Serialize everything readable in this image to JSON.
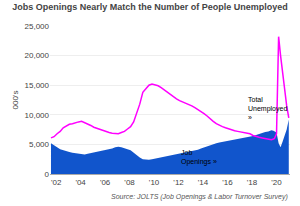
{
  "chart_data": {
    "type": "line",
    "title": "Jobs Openings Nearly Match the Number of People Unemployed",
    "ylabel": "000's",
    "source": "Source: JOLTS (Job Openings & Labor Turnover Survey)",
    "x": [
      2001.58,
      2001.83,
      2002.08,
      2002.33,
      2002.58,
      2002.83,
      2003.08,
      2003.33,
      2003.58,
      2003.83,
      2004.08,
      2004.33,
      2004.58,
      2004.83,
      2005.08,
      2005.33,
      2005.58,
      2005.83,
      2006.08,
      2006.33,
      2006.58,
      2006.83,
      2007.08,
      2007.33,
      2007.58,
      2007.83,
      2008.08,
      2008.33,
      2008.58,
      2008.83,
      2009.08,
      2009.33,
      2009.58,
      2009.83,
      2010.08,
      2010.33,
      2010.58,
      2010.83,
      2011.08,
      2011.33,
      2011.58,
      2011.83,
      2012.08,
      2012.33,
      2012.58,
      2012.83,
      2013.08,
      2013.33,
      2013.58,
      2013.83,
      2014.08,
      2014.33,
      2014.58,
      2014.83,
      2015.08,
      2015.33,
      2015.58,
      2015.83,
      2016.08,
      2016.33,
      2016.58,
      2016.83,
      2017.08,
      2017.33,
      2017.58,
      2017.83,
      2018.08,
      2018.33,
      2018.58,
      2018.83,
      2019.08,
      2019.33,
      2019.58,
      2019.75,
      2019.83,
      2020.0,
      2020.17,
      2020.33,
      2020.5,
      2020.67,
      2020.83,
      2021.0
    ],
    "series": [
      {
        "type": "area",
        "color": "#1155cc",
        "values": [
          5200,
          4800,
          4500,
          4200,
          4000,
          3800,
          3700,
          3600,
          3500,
          3400,
          3300,
          3300,
          3400,
          3500,
          3600,
          3700,
          3800,
          3900,
          4000,
          4100,
          4300,
          4500,
          4600,
          4500,
          4400,
          4200,
          4000,
          3600,
          3100,
          2800,
          2500,
          2400,
          2400,
          2500,
          2600,
          2700,
          2800,
          2900,
          3000,
          3100,
          3200,
          3300,
          3500,
          3600,
          3700,
          3800,
          3900,
          4000,
          4100,
          4300,
          4500,
          4700,
          4900,
          5100,
          5200,
          5300,
          5400,
          5400,
          5500,
          5600,
          5700,
          5800,
          5900,
          6000,
          6100,
          6200,
          6400,
          6600,
          6800,
          7000,
          7100,
          7200,
          7400,
          7300,
          7200,
          7000,
          5200,
          4500,
          5500,
          6500,
          7500,
          9200
        ]
      },
      {
        "type": "line",
        "color": "#ff00ff",
        "values": [
          6100,
          6300,
          6800,
          7200,
          7800,
          8100,
          8400,
          8500,
          8700,
          8800,
          8900,
          8700,
          8400,
          8200,
          7900,
          7700,
          7500,
          7300,
          7100,
          7000,
          6900,
          6800,
          6800,
          7000,
          7200,
          7600,
          8000,
          8800,
          10200,
          11800,
          13800,
          14500,
          15000,
          15200,
          15100,
          14900,
          14600,
          14200,
          13800,
          13400,
          13000,
          12700,
          12400,
          12200,
          12000,
          11800,
          11500,
          11200,
          10900,
          10600,
          10200,
          9800,
          9300,
          8900,
          8500,
          8200,
          8000,
          7800,
          7600,
          7500,
          7300,
          7200,
          7100,
          7000,
          6900,
          6800,
          6500,
          6300,
          6200,
          6100,
          6000,
          5900,
          5800,
          5900,
          6000,
          6800,
          23200,
          20000,
          17000,
          14000,
          11500,
          9500
        ]
      }
    ],
    "annotations": [
      {
        "text": "Total\nUnemployed\n»",
        "x": 2017.5,
        "y": 13500
      },
      {
        "text": "Job\nOpenings »",
        "x": 2012.0,
        "y": 4500
      }
    ],
    "xlim": [
      2001.5,
      2021.1
    ],
    "xticks": [
      {
        "value": 2002,
        "label": "'02"
      },
      {
        "value": 2004,
        "label": "'04"
      },
      {
        "value": 2006,
        "label": "'06"
      },
      {
        "value": 2008,
        "label": "'08"
      },
      {
        "value": 2010,
        "label": "'10"
      },
      {
        "value": 2012,
        "label": "'12"
      },
      {
        "value": 2014,
        "label": "'14"
      },
      {
        "value": 2016,
        "label": "'16"
      },
      {
        "value": 2018,
        "label": "'18"
      },
      {
        "value": 2020,
        "label": "'20"
      }
    ],
    "ylim": [
      0,
      25000
    ],
    "yticks": [
      0,
      {
        "value": 5000,
        "label": "5,000"
      },
      {
        "value": 10000,
        "label": "10,000"
      },
      {
        "value": 15000,
        "label": "15,000"
      },
      {
        "value": 20000,
        "label": "20,000"
      },
      {
        "value": 25000,
        "label": "25,000"
      }
    ],
    "grid": true
  }
}
